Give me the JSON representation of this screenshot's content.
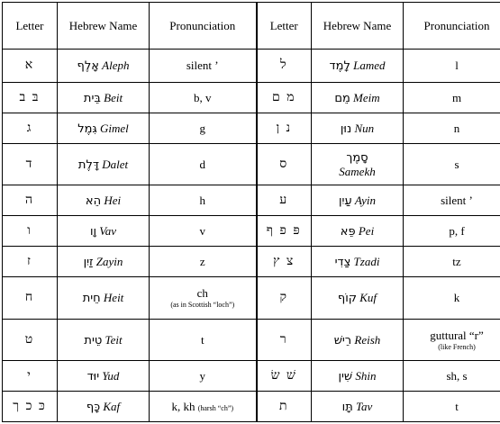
{
  "headers": {
    "letter": "Letter",
    "hebrew_name": "Hebrew Name",
    "pronunciation": "Pronunciation"
  },
  "rows": [
    {
      "left": {
        "letter": "א",
        "hebrew": "אָלֶף",
        "translit": "Aleph",
        "pron": "silent ’",
        "note": ""
      },
      "right": {
        "letter": "ל",
        "hebrew": "לָמֶד",
        "translit": "Lamed",
        "pron": "l",
        "note": ""
      }
    },
    {
      "left": {
        "letter": "בּ ב",
        "hebrew": "בֵּית",
        "translit": "Beit",
        "pron": "b, v",
        "note": ""
      },
      "right": {
        "letter": "מ ם",
        "hebrew": "מֵם",
        "translit": "Meim",
        "pron": "m",
        "note": ""
      }
    },
    {
      "left": {
        "letter": "ג",
        "hebrew": "גִּמֶל",
        "translit": "Gimel",
        "pron": "g",
        "note": ""
      },
      "right": {
        "letter": "נ ן",
        "hebrew": "נוּן",
        "translit": "Nun",
        "pron": "n",
        "note": ""
      }
    },
    {
      "left": {
        "letter": "ד",
        "hebrew": "דָּלֶת",
        "translit": "Dalet",
        "pron": "d",
        "note": ""
      },
      "right": {
        "letter": "ס",
        "hebrew": "סָמֶך",
        "translit": "Samekh",
        "pron": "s",
        "note": ""
      }
    },
    {
      "left": {
        "letter": "ה",
        "hebrew": "הֵא",
        "translit": "Hei",
        "pron": "h",
        "note": ""
      },
      "right": {
        "letter": "ע",
        "hebrew": "עַיִן",
        "translit": "Ayin",
        "pron": "silent ’",
        "note": ""
      }
    },
    {
      "left": {
        "letter": "ו",
        "hebrew": "וָו",
        "translit": "Vav",
        "pron": "v",
        "note": ""
      },
      "right": {
        "letter": "פּ פ ף",
        "hebrew": "פֵּא",
        "translit": "Pei",
        "pron": "p, f",
        "note": ""
      }
    },
    {
      "left": {
        "letter": "ז",
        "hebrew": "זַיִן",
        "translit": "Zayin",
        "pron": "z",
        "note": ""
      },
      "right": {
        "letter": "צ ץ",
        "hebrew": "צַדִי",
        "translit": "Tzadi",
        "pron": "tz",
        "note": ""
      }
    },
    {
      "left": {
        "letter": "ח",
        "hebrew": "חֵית",
        "translit": "Heit",
        "pron": "ch",
        "note": "(as in Scottish “loch”)"
      },
      "right": {
        "letter": "ק",
        "hebrew": "קוֹף",
        "translit": "Kuf",
        "pron": "k",
        "note": ""
      }
    },
    {
      "left": {
        "letter": "ט",
        "hebrew": "טֵית",
        "translit": "Teit",
        "pron": "t",
        "note": ""
      },
      "right": {
        "letter": "ר",
        "hebrew": "רֵישׁ",
        "translit": "Reish",
        "pron": "guttural “r”",
        "note": "(like French)"
      }
    },
    {
      "left": {
        "letter": "י",
        "hebrew": "יוּד",
        "translit": "Yud",
        "pron": "y",
        "note": ""
      },
      "right": {
        "letter": "שׁ שׂ",
        "hebrew": "שִׁין",
        "translit": "Shin",
        "pron": "sh, s",
        "note": ""
      }
    },
    {
      "left": {
        "letter": "כּ כ ך",
        "hebrew": "כָּף",
        "translit": "Kaf",
        "pron": "k, kh",
        "note": "(harsh “ch”)"
      },
      "right": {
        "letter": "ת",
        "hebrew": "תָּו",
        "translit": "Tav",
        "pron": "t",
        "note": ""
      }
    }
  ]
}
